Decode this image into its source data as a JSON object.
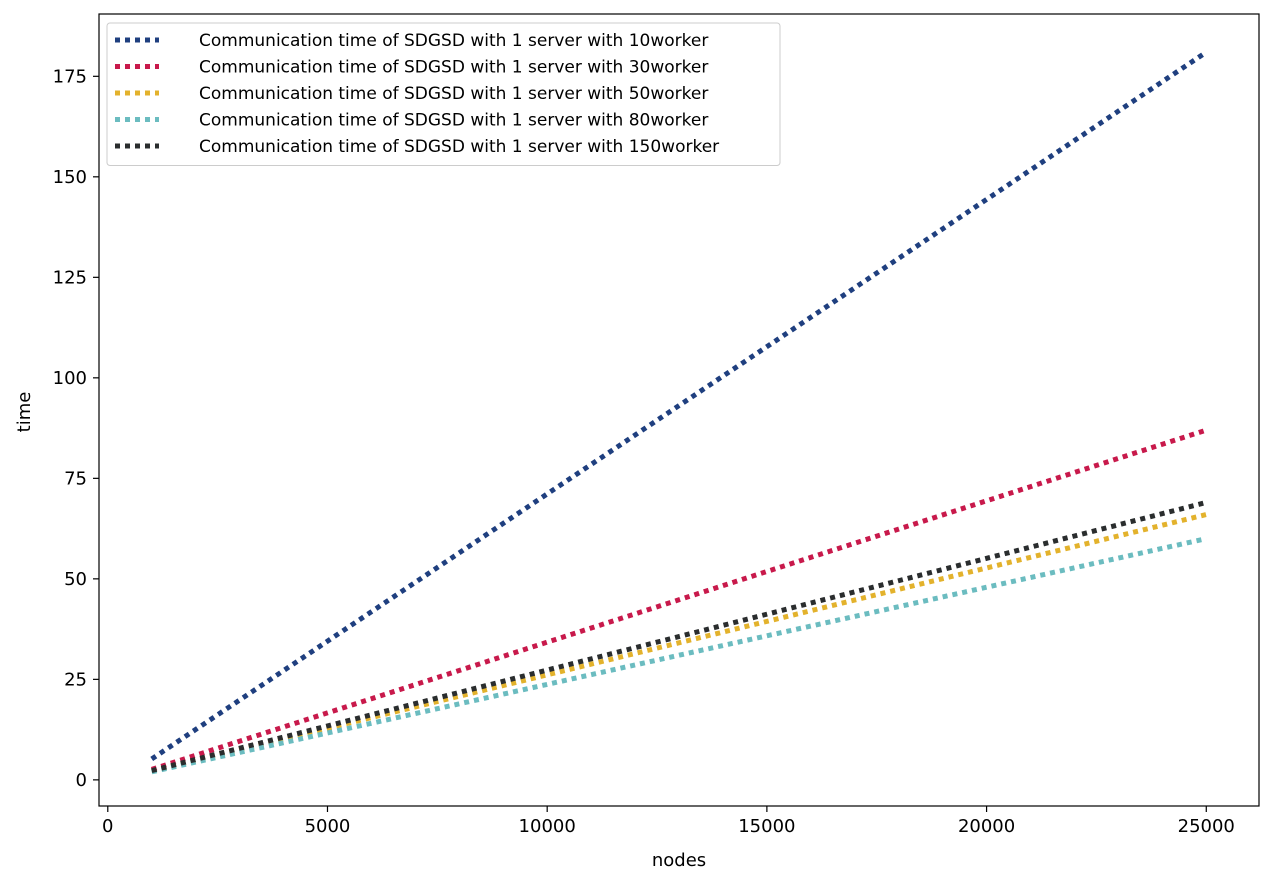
{
  "chart_data": {
    "type": "line",
    "title": "",
    "xlabel": "nodes",
    "ylabel": "time",
    "xlim": [
      -200,
      26200
    ],
    "ylim": [
      -6.5,
      190.5
    ],
    "xticks": [
      0,
      5000,
      10000,
      15000,
      20000,
      25000
    ],
    "yticks": [
      0,
      25,
      50,
      75,
      100,
      125,
      150,
      175
    ],
    "grid": false,
    "legend_position": "top-left",
    "series": [
      {
        "name": "Communication time of SDGSD with 1 server with 10worker",
        "color": "#1f3f7f",
        "x": [
          1000,
          25000
        ],
        "y": [
          5.2,
          181.0
        ]
      },
      {
        "name": "Communication time of SDGSD with 1 server with 30worker",
        "color": "#c8194b",
        "x": [
          1000,
          25000
        ],
        "y": [
          2.6,
          87.0
        ]
      },
      {
        "name": "Communication time of SDGSD with 1 server with 50worker",
        "color": "#e3b22c",
        "x": [
          1000,
          25000
        ],
        "y": [
          2.2,
          66.0
        ]
      },
      {
        "name": "Communication time of SDGSD with 1 server with 80worker",
        "color": "#6bbcc0",
        "x": [
          1000,
          25000
        ],
        "y": [
          2.0,
          60.0
        ]
      },
      {
        "name": "Communication time of SDGSD with 1 server with 150worker",
        "color": "#2a2d2e",
        "x": [
          1000,
          25000
        ],
        "y": [
          2.3,
          69.0
        ]
      }
    ]
  }
}
